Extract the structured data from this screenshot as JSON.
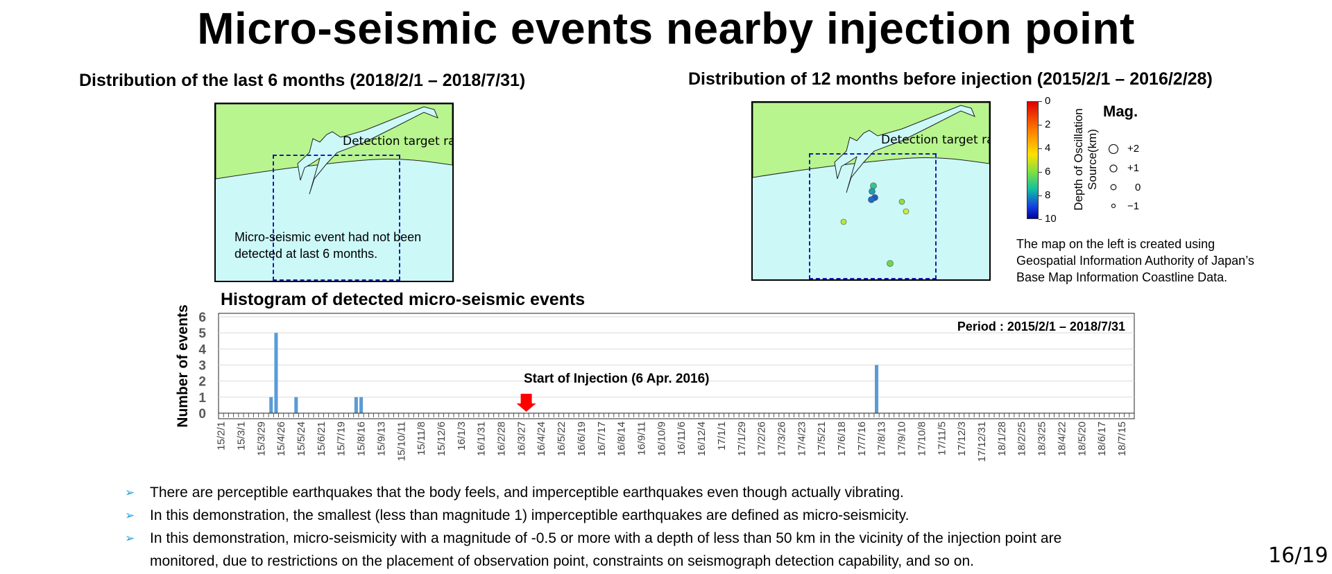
{
  "title": "Micro-seismic events nearby injection point",
  "left_map": {
    "subtitle": "Distribution of the last 6 months (2018/2/1 – 2018/7/31)",
    "range_label": "Detection target range",
    "note_line1": "Micro-seismic event had not been",
    "note_line2": "detected at last 6 months."
  },
  "right_map": {
    "subtitle": "Distribution of 12 months before injection (2015/2/1 – 2016/2/28)",
    "range_label": "Detection target range",
    "depth_legend": {
      "label_line1": "Depth of Oscillation",
      "label_line2": "Source(km)",
      "ticks": [
        "0",
        "2",
        "4",
        "6",
        "8",
        "10"
      ]
    },
    "mag_legend": {
      "title": "Mag.",
      "entries": [
        "+2",
        "+1",
        "0",
        "−1"
      ]
    },
    "attribution_line1": "The map on the left is created using",
    "attribution_line2": "Geospatial Information Authority of Japan’s",
    "attribution_line3": "Base Map Information Coastline Data."
  },
  "colors": {
    "land": "#b8f58e",
    "sea": "#ccf8f8",
    "detection_box": "#1a1aa8",
    "bar": "#5b9bd5",
    "injection_arrow": "#ff0000",
    "bullet_arrow": "#1d9fe0"
  },
  "chart_data": {
    "type": "bar",
    "title": "Histogram of detected micro-seismic events",
    "ylabel": "Number of events",
    "xlabel": "",
    "ylim": [
      0,
      6
    ],
    "yticks": [
      "0",
      "1",
      "2",
      "3",
      "4",
      "5",
      "6"
    ],
    "period_label": "Period : 2015/2/1 – 2018/7/31",
    "injection_label": "Start of Injection (6 Apr. 2016)",
    "injection_week": "16/4/3",
    "x_tick_labels": [
      "15/2/1",
      "15/3/1",
      "15/3/29",
      "15/4/26",
      "15/5/24",
      "15/6/21",
      "15/7/19",
      "15/8/16",
      "15/9/13",
      "15/10/11",
      "15/11/8",
      "15/12/6",
      "16/1/3",
      "16/1/31",
      "16/2/28",
      "16/3/27",
      "16/4/24",
      "16/5/22",
      "16/6/19",
      "16/7/17",
      "16/8/14",
      "16/9/11",
      "16/10/9",
      "16/11/6",
      "16/12/4",
      "17/1/1",
      "17/1/29",
      "17/2/26",
      "17/3/26",
      "17/4/23",
      "17/5/21",
      "17/6/18",
      "17/7/16",
      "17/8/13",
      "17/9/10",
      "17/10/8",
      "17/11/5",
      "17/12/3",
      "17/12/31",
      "18/1/28",
      "18/2/25",
      "18/3/25",
      "18/4/22",
      "18/5/20",
      "18/6/17",
      "18/7/15"
    ],
    "weeks_count": 183,
    "nonzero_bars": [
      {
        "week": "15/4/12",
        "value": 1
      },
      {
        "week": "15/4/19",
        "value": 5
      },
      {
        "week": "15/5/17",
        "value": 1
      },
      {
        "week": "15/8/9",
        "value": 1
      },
      {
        "week": "15/8/16",
        "value": 1
      },
      {
        "week": "17/8/6",
        "value": 3
      }
    ]
  },
  "bullets": [
    {
      "line1": "There are perceptible earthquakes that the body feels, and imperceptible earthquakes even though actually vibrating."
    },
    {
      "line1": "In this demonstration, the smallest (less than magnitude 1) imperceptible earthquakes are defined as micro-seismicity."
    },
    {
      "line1": "In this demonstration, micro-seismicity with a magnitude of -0.5 or more with a depth of less than 50 km in the vicinity of the injection point are",
      "line2": "monitored, due to restrictions on the placement of observation point, constraints on seismograph detection capability, and so on."
    }
  ],
  "bullet_icon": "arrow-right-icon",
  "page_number": "16/19"
}
